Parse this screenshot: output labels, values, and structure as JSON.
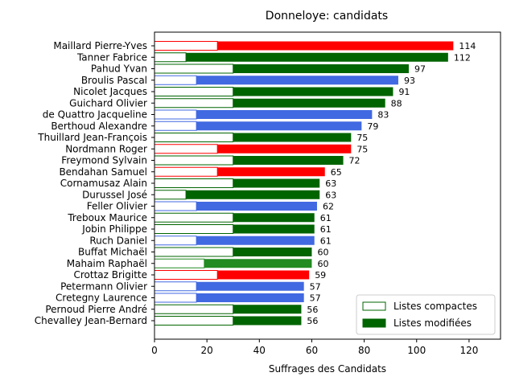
{
  "chart_data": {
    "type": "bar",
    "orientation": "horizontal",
    "stacked": true,
    "title": "Donneloye: candidats",
    "xlabel": "Suffrages des Candidats",
    "ylabel": "",
    "xlim": [
      0,
      132
    ],
    "xticks": [
      0,
      20,
      40,
      60,
      80,
      100,
      120
    ],
    "legend": {
      "position": "lower-right",
      "entries": [
        "Listes compactes",
        "Listes modifiées"
      ],
      "swatch_colors": [
        "#ffffff",
        "#006400"
      ]
    },
    "categories": [
      "Maillard Pierre-Yves",
      "Tanner Fabrice",
      "Pahud Yvan",
      "Broulis Pascal",
      "Nicolet Jacques",
      "Guichard Olivier",
      "de Quattro Jacqueline",
      "Berthoud Alexandre",
      "Thuillard Jean-François",
      "Nordmann Roger",
      "Freymond Sylvain",
      "Bendahan Samuel",
      "Cornamusaz Alain",
      "Durussel José",
      "Feller Olivier",
      "Treboux Maurice",
      "Jobin Philippe",
      "Ruch Daniel",
      "Buffat Michaël",
      "Mahaim Raphaël",
      "Crottaz Brigitte",
      "Petermann Olivier",
      "Cretegny Laurence",
      "Pernoud Pierre André",
      "Chevalley Jean-Bernard"
    ],
    "series": [
      {
        "name": "Listes compactes",
        "values": [
          24,
          12,
          30,
          16,
          30,
          30,
          16,
          16,
          30,
          24,
          30,
          24,
          30,
          12,
          16,
          30,
          30,
          16,
          30,
          19,
          24,
          16,
          16,
          30,
          30
        ]
      },
      {
        "name": "Listes modifiées",
        "values": [
          90,
          100,
          67,
          77,
          61,
          58,
          67,
          63,
          45,
          51,
          42,
          41,
          33,
          51,
          46,
          31,
          31,
          45,
          30,
          41,
          35,
          41,
          41,
          26,
          26
        ]
      }
    ],
    "totals": [
      114,
      112,
      97,
      93,
      91,
      88,
      83,
      79,
      75,
      75,
      72,
      65,
      63,
      63,
      62,
      61,
      61,
      61,
      60,
      60,
      59,
      57,
      57,
      56,
      56
    ],
    "bar_colors": [
      "#ff0000",
      "#006400",
      "#006400",
      "#4169e1",
      "#006400",
      "#006400",
      "#4169e1",
      "#4169e1",
      "#006400",
      "#ff0000",
      "#006400",
      "#ff0000",
      "#006400",
      "#006400",
      "#4169e1",
      "#006400",
      "#006400",
      "#4169e1",
      "#006400",
      "#228b22",
      "#ff0000",
      "#4169e1",
      "#4169e1",
      "#006400",
      "#006400"
    ]
  }
}
